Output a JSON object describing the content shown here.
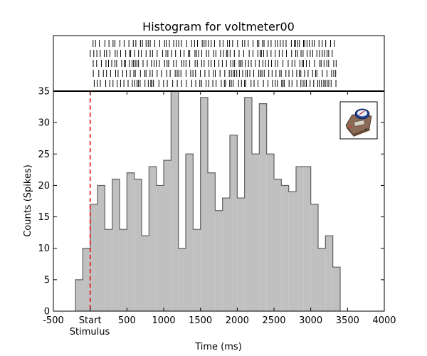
{
  "chart_data": {
    "type": "bar",
    "title": "Histogram for voltmeter00",
    "xlabel": "Time (ms)",
    "ylabel": "Counts (Spikes)",
    "xlim": [
      -500,
      4000
    ],
    "ylim": [
      0,
      35
    ],
    "x_ticks": [
      -500,
      0,
      500,
      1000,
      1500,
      2000,
      2500,
      3000,
      3500,
      4000
    ],
    "x_tick_labels": [
      "-500",
      "Start",
      "500",
      "1000",
      "1500",
      "2000",
      "2500",
      "3000",
      "3500",
      "4000"
    ],
    "x_tick_sublabel": "Stimulus",
    "y_ticks": [
      0,
      5,
      10,
      15,
      20,
      25,
      30,
      35
    ],
    "y_tick_labels": [
      "0",
      "5",
      "10",
      "15",
      "20",
      "25",
      "30",
      "35"
    ],
    "bin_width": 100,
    "bin_start": -200,
    "values": [
      5,
      10,
      17,
      20,
      13,
      21,
      13,
      22,
      21,
      12,
      23,
      20,
      24,
      35,
      10,
      25,
      13,
      34,
      22,
      16,
      18,
      28,
      18,
      34,
      25,
      33,
      25,
      21,
      20,
      19,
      23,
      23,
      17,
      10,
      12,
      7
    ],
    "stimulus_marker_x": 0,
    "bar_color": "#c0c0c0",
    "bar_edge_color": "#606060",
    "stimulus_line_color": "#e00000",
    "raster_rows": 5,
    "raster_x_range": [
      0,
      3350
    ],
    "icon": "voltmeter-device-icon"
  }
}
